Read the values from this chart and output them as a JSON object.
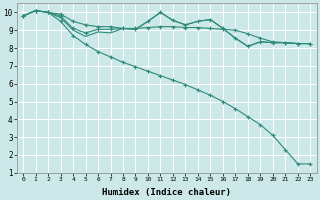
{
  "xlabel": "Humidex (Indice chaleur)",
  "bg_color": "#cce8e8",
  "grid_color": "#ffffff",
  "line_color": "#2e8b7a",
  "xlim": [
    -0.5,
    23.5
  ],
  "ylim": [
    1,
    10.5
  ],
  "yticks": [
    1,
    2,
    3,
    4,
    5,
    6,
    7,
    8,
    9,
    10
  ],
  "series": [
    {
      "x": [
        0,
        1,
        2,
        3,
        4,
        5,
        6,
        7,
        8,
        9,
        10,
        11,
        12,
        13,
        14,
        15,
        16,
        17,
        18,
        19,
        20,
        21,
        22,
        23
      ],
      "y": [
        9.8,
        10.1,
        10.0,
        9.9,
        9.5,
        9.3,
        9.2,
        9.2,
        9.1,
        9.1,
        9.15,
        9.2,
        9.2,
        9.15,
        9.15,
        9.1,
        9.05,
        9.0,
        8.8,
        8.55,
        8.35,
        8.3,
        8.25,
        8.25
      ],
      "markers": true
    },
    {
      "x": [
        0,
        1,
        2,
        3,
        4,
        5,
        6,
        7,
        8,
        9,
        10,
        11,
        12,
        13,
        14,
        15,
        16,
        17,
        18,
        19,
        20,
        21,
        22,
        23
      ],
      "y": [
        9.8,
        10.1,
        10.0,
        9.8,
        9.1,
        8.85,
        9.05,
        9.05,
        9.1,
        9.05,
        9.5,
        10.0,
        9.55,
        9.3,
        9.5,
        9.6,
        9.1,
        8.55,
        8.1,
        8.35,
        8.3,
        8.3,
        8.25,
        8.25
      ],
      "markers": true
    },
    {
      "x": [
        0,
        1,
        2,
        3,
        4,
        5,
        6,
        7,
        8,
        9,
        10,
        11,
        12,
        13,
        14,
        15,
        16,
        17,
        18,
        19,
        20,
        21,
        22,
        23
      ],
      "y": [
        9.8,
        10.1,
        10.0,
        9.7,
        9.0,
        8.65,
        8.9,
        8.85,
        9.1,
        9.05,
        9.5,
        10.0,
        9.55,
        9.3,
        9.5,
        9.6,
        9.1,
        8.55,
        8.1,
        8.35,
        8.3,
        8.3,
        8.25,
        8.25
      ],
      "markers": false
    },
    {
      "x": [
        0,
        1,
        2,
        3,
        4,
        5,
        6,
        7,
        8,
        9,
        10,
        11,
        12,
        13,
        14,
        15,
        16,
        17,
        18,
        19,
        20,
        21,
        22,
        23
      ],
      "y": [
        9.8,
        10.1,
        10.0,
        9.5,
        8.7,
        8.2,
        7.8,
        7.5,
        7.2,
        6.95,
        6.7,
        6.45,
        6.2,
        5.95,
        5.65,
        5.35,
        5.0,
        4.6,
        4.15,
        3.7,
        3.1,
        2.3,
        1.5,
        1.5
      ],
      "markers": true
    }
  ]
}
